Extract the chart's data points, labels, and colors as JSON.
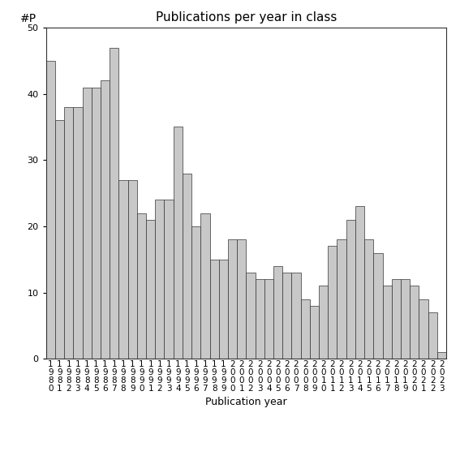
{
  "title": "Publications per year in class",
  "xlabel": "Publication year",
  "ylabel": "#P",
  "bar_color": "#c8c8c8",
  "edge_color": "#333333",
  "ylim": [
    0,
    50
  ],
  "yticks": [
    0,
    10,
    20,
    30,
    40,
    50
  ],
  "years": [
    1980,
    1981,
    1982,
    1983,
    1984,
    1985,
    1986,
    1987,
    1988,
    1989,
    1990,
    1991,
    1992,
    1993,
    1994,
    1995,
    1996,
    1997,
    1998,
    1999,
    2000,
    2001,
    2002,
    2003,
    2004,
    2005,
    2006,
    2007,
    2008,
    2009,
    2010,
    2011,
    2012,
    2013,
    2014,
    2015,
    2016,
    2017,
    2018,
    2019,
    2020,
    2021,
    2022,
    2023
  ],
  "values": [
    45,
    36,
    38,
    38,
    41,
    41,
    42,
    47,
    27,
    27,
    22,
    21,
    24,
    24,
    35,
    28,
    20,
    22,
    15,
    15,
    18,
    18,
    13,
    12,
    12,
    14,
    13,
    13,
    9,
    8,
    11,
    17,
    18,
    21,
    23,
    18,
    16,
    11,
    12,
    12,
    11,
    9,
    7,
    1
  ],
  "background_color": "#ffffff",
  "title_fontsize": 11,
  "label_fontsize": 9,
  "tick_fontsize": 7.5
}
